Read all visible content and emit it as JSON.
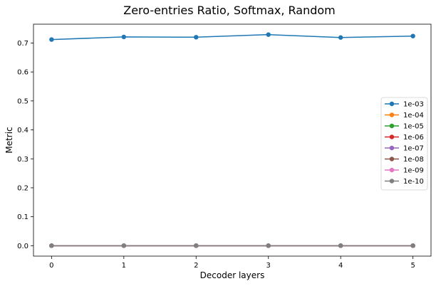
{
  "chart_data": {
    "type": "line",
    "title": "Zero-entries Ratio, Softmax, Random",
    "xlabel": "Decoder layers",
    "ylabel": "Metric",
    "x": [
      0,
      1,
      2,
      3,
      4,
      5
    ],
    "xlim": [
      -0.25,
      5.25
    ],
    "ylim": [
      -0.036,
      0.765
    ],
    "xticks": [
      0,
      1,
      2,
      3,
      4,
      5
    ],
    "yticks": [
      0.0,
      0.1,
      0.2,
      0.3,
      0.4,
      0.5,
      0.6,
      0.7
    ],
    "ytick_labels": [
      "0.0",
      "0.1",
      "0.2",
      "0.3",
      "0.4",
      "0.5",
      "0.6",
      "0.7"
    ],
    "grid": false,
    "legend_position": "center-right",
    "series": [
      {
        "name": "1e-03",
        "color": "#1f77b4",
        "values": [
          0.712,
          0.721,
          0.72,
          0.729,
          0.719,
          0.724
        ]
      },
      {
        "name": "1e-04",
        "color": "#ff7f0e",
        "values": [
          0.0,
          0.0,
          0.0,
          0.0,
          0.0,
          0.0
        ]
      },
      {
        "name": "1e-05",
        "color": "#2ca02c",
        "values": [
          0.0,
          0.0,
          0.0,
          0.0,
          0.0,
          0.0
        ]
      },
      {
        "name": "1e-06",
        "color": "#d62728",
        "values": [
          0.0,
          0.0,
          0.0,
          0.0,
          0.0,
          0.0
        ]
      },
      {
        "name": "1e-07",
        "color": "#9467bd",
        "values": [
          0.0,
          0.0,
          0.0,
          0.0,
          0.0,
          0.0
        ]
      },
      {
        "name": "1e-08",
        "color": "#8c564b",
        "values": [
          0.0,
          0.0,
          0.0,
          0.0,
          0.0,
          0.0
        ]
      },
      {
        "name": "1e-09",
        "color": "#e377c2",
        "values": [
          0.0,
          0.0,
          0.0,
          0.0,
          0.0,
          0.0
        ]
      },
      {
        "name": "1e-10",
        "color": "#7f7f7f",
        "values": [
          0.0,
          0.0,
          0.0,
          0.0,
          0.0,
          0.0
        ]
      }
    ]
  }
}
